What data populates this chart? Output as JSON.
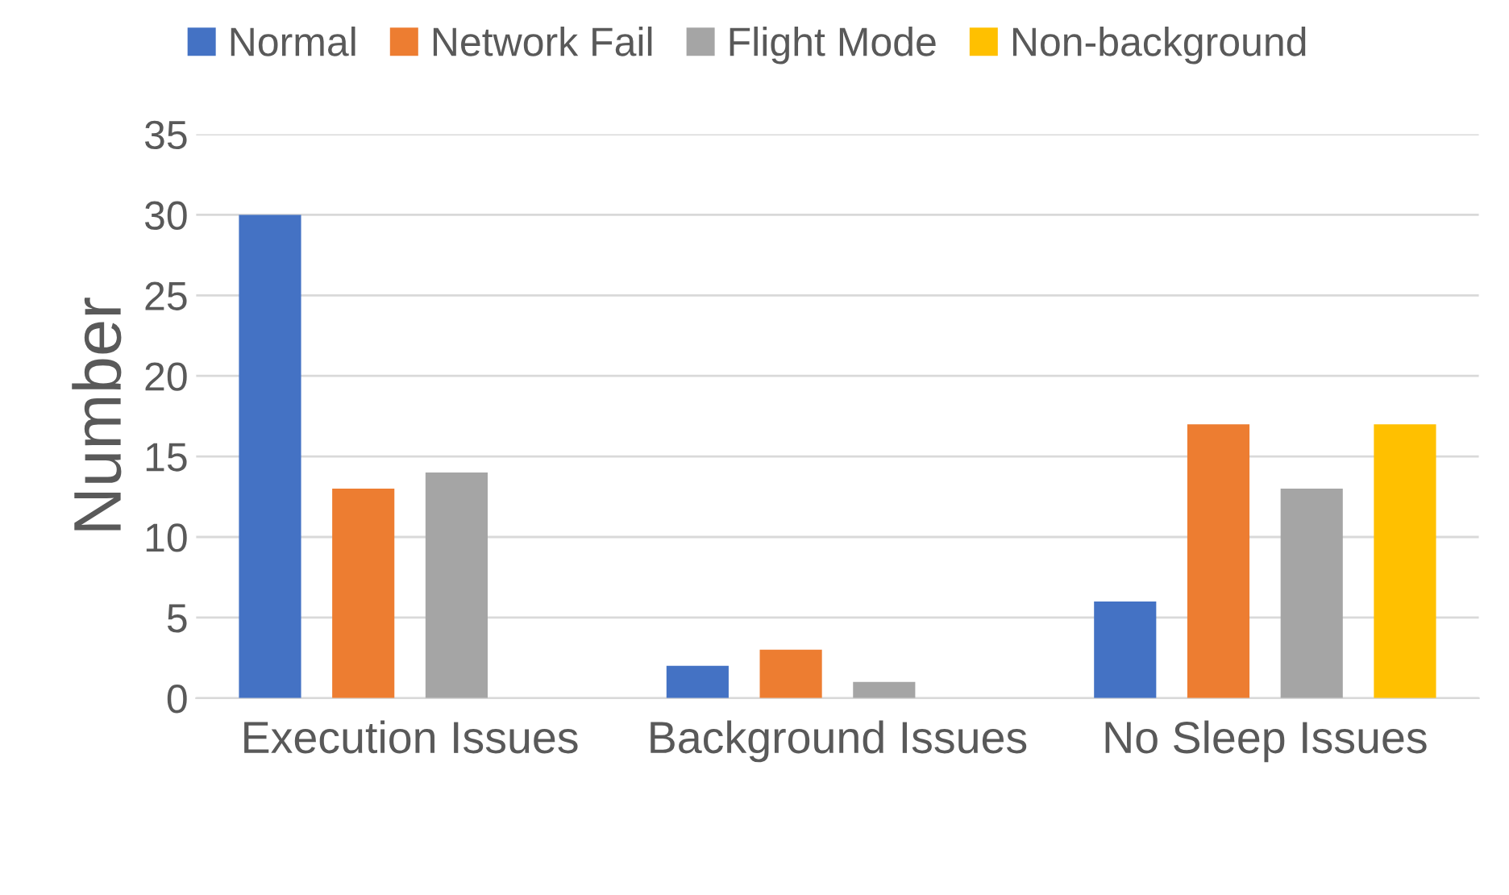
{
  "chart_data": {
    "type": "bar",
    "ylabel": "Number",
    "categories": [
      "Execution Issues",
      "Background Issues",
      "No Sleep Issues"
    ],
    "series": [
      {
        "name": "Normal",
        "color": "#4472c4",
        "values": [
          30,
          2,
          6
        ]
      },
      {
        "name": "Network Fail",
        "color": "#ed7d31",
        "values": [
          13,
          3,
          17
        ]
      },
      {
        "name": "Flight Mode",
        "color": "#a5a5a5",
        "values": [
          14,
          1,
          13
        ]
      },
      {
        "name": "Non-background",
        "color": "#ffc000",
        "values": [
          null,
          null,
          17
        ]
      }
    ],
    "ylim": [
      0,
      35
    ],
    "yticks": [
      0,
      5,
      10,
      15,
      20,
      25,
      30,
      35
    ],
    "grid": "y",
    "legend": "top"
  }
}
